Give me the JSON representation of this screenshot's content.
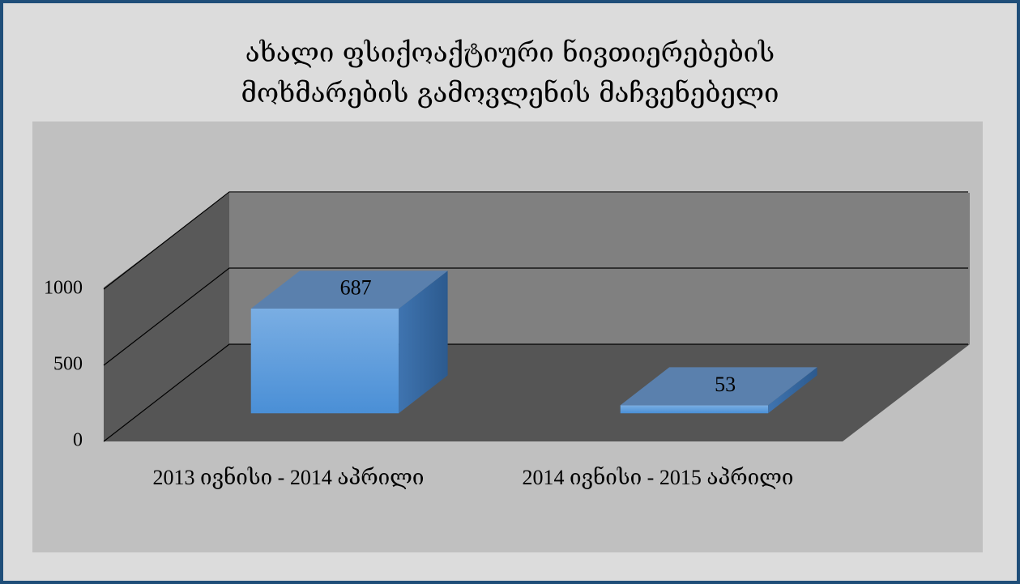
{
  "chart_data": {
    "type": "bar3d",
    "title": "ახალი ფსიქოაქტიური ნივთიერებების\nმოხმარების გამოვლენის მაჩვენებელი",
    "categories": [
      "2013 ივნისი - 2014 აპრილი",
      "2014 ივნისი - 2015 აპრილი"
    ],
    "values": [
      687,
      53
    ],
    "color": "#5b9bd5",
    "ylim": [
      0,
      1000
    ],
    "yticks": [
      0,
      500,
      1000
    ],
    "grid": true
  }
}
